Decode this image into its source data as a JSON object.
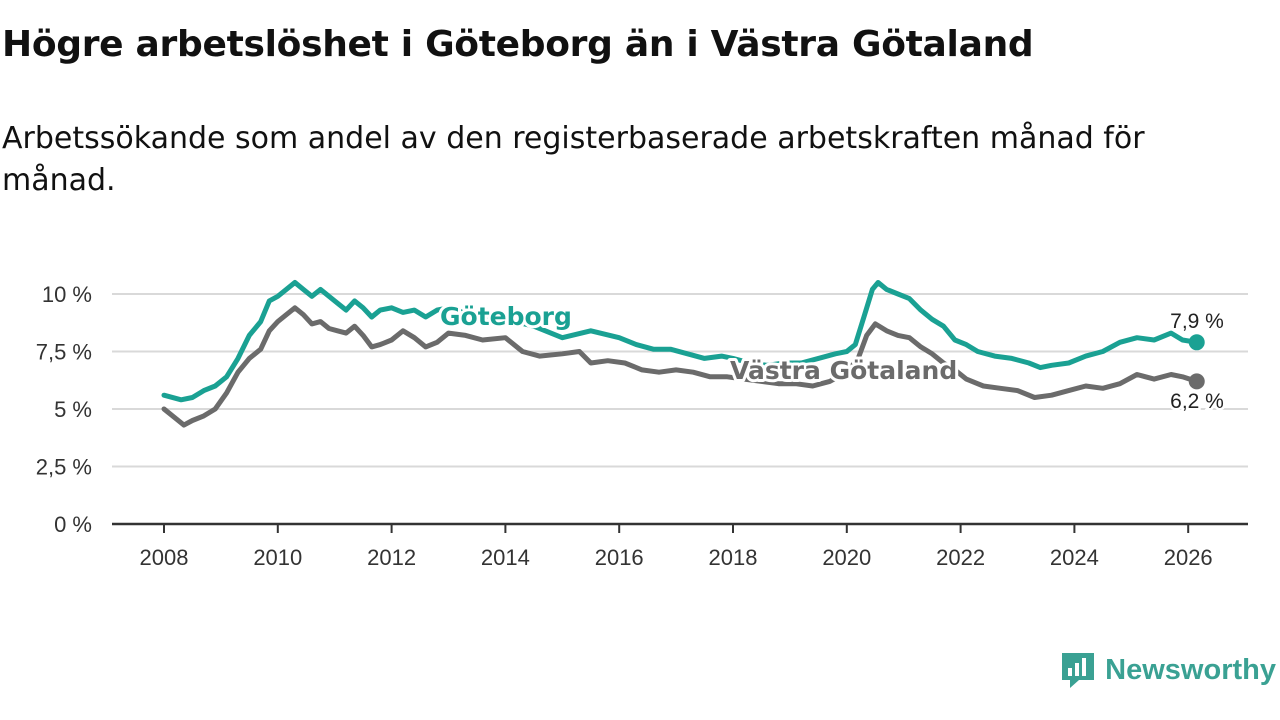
{
  "chart_data": {
    "type": "line",
    "title": "Högre arbetslöshet i Göteborg än i Västra Götaland",
    "subtitle": "Arbetssökande som andel av den registerbaserade arbetskraften månad för månad.",
    "xlabel": "",
    "ylabel": "",
    "xlim": [
      2007,
      2027
    ],
    "ylim": [
      0,
      11
    ],
    "x_ticks": [
      2008,
      2010,
      2012,
      2014,
      2016,
      2018,
      2020,
      2022,
      2024,
      2026
    ],
    "x_tick_labels": [
      "2008",
      "2010",
      "2012",
      "2014",
      "2016",
      "2018",
      "2020",
      "2022",
      "2024",
      "2026"
    ],
    "y_ticks": [
      0,
      2.5,
      5,
      7.5,
      10
    ],
    "y_tick_labels": [
      "0 %",
      "2,5 %",
      "5 %",
      "7,5 %",
      "10 %"
    ],
    "grid": true,
    "series": [
      {
        "name": "Göteborg",
        "color": "#1aa193",
        "end_label": "7,9 %",
        "points": [
          [
            2008.0,
            5.6
          ],
          [
            2008.3,
            5.4
          ],
          [
            2008.5,
            5.5
          ],
          [
            2008.7,
            5.8
          ],
          [
            2008.9,
            6.0
          ],
          [
            2009.1,
            6.4
          ],
          [
            2009.3,
            7.2
          ],
          [
            2009.5,
            8.2
          ],
          [
            2009.7,
            8.8
          ],
          [
            2009.85,
            9.7
          ],
          [
            2010.0,
            9.9
          ],
          [
            2010.15,
            10.2
          ],
          [
            2010.3,
            10.5
          ],
          [
            2010.45,
            10.2
          ],
          [
            2010.6,
            9.9
          ],
          [
            2010.75,
            10.2
          ],
          [
            2010.9,
            9.9
          ],
          [
            2011.05,
            9.6
          ],
          [
            2011.2,
            9.3
          ],
          [
            2011.35,
            9.7
          ],
          [
            2011.5,
            9.4
          ],
          [
            2011.65,
            9.0
          ],
          [
            2011.8,
            9.3
          ],
          [
            2012.0,
            9.4
          ],
          [
            2012.2,
            9.2
          ],
          [
            2012.4,
            9.3
          ],
          [
            2012.6,
            9.0
          ],
          [
            2012.8,
            9.3
          ],
          [
            2013.0,
            9.4
          ],
          [
            2013.5,
            9.0
          ],
          [
            2014.0,
            8.9
          ],
          [
            2014.5,
            8.6
          ],
          [
            2015.0,
            8.1
          ],
          [
            2015.5,
            8.4
          ],
          [
            2016.0,
            8.1
          ],
          [
            2016.3,
            7.8
          ],
          [
            2016.6,
            7.6
          ],
          [
            2016.9,
            7.6
          ],
          [
            2017.2,
            7.4
          ],
          [
            2017.5,
            7.2
          ],
          [
            2017.8,
            7.3
          ],
          [
            2018.0,
            7.2
          ],
          [
            2018.3,
            7.0
          ],
          [
            2018.6,
            6.9
          ],
          [
            2018.9,
            7.0
          ],
          [
            2019.2,
            7.0
          ],
          [
            2019.5,
            7.2
          ],
          [
            2019.8,
            7.4
          ],
          [
            2020.0,
            7.5
          ],
          [
            2020.15,
            7.8
          ],
          [
            2020.3,
            9.0
          ],
          [
            2020.45,
            10.2
          ],
          [
            2020.55,
            10.5
          ],
          [
            2020.7,
            10.2
          ],
          [
            2020.9,
            10.0
          ],
          [
            2021.1,
            9.8
          ],
          [
            2021.3,
            9.3
          ],
          [
            2021.5,
            8.9
          ],
          [
            2021.7,
            8.6
          ],
          [
            2021.9,
            8.0
          ],
          [
            2022.1,
            7.8
          ],
          [
            2022.3,
            7.5
          ],
          [
            2022.6,
            7.3
          ],
          [
            2022.9,
            7.2
          ],
          [
            2023.2,
            7.0
          ],
          [
            2023.4,
            6.8
          ],
          [
            2023.6,
            6.9
          ],
          [
            2023.9,
            7.0
          ],
          [
            2024.2,
            7.3
          ],
          [
            2024.5,
            7.5
          ],
          [
            2024.8,
            7.9
          ],
          [
            2025.1,
            8.1
          ],
          [
            2025.4,
            8.0
          ],
          [
            2025.7,
            8.3
          ],
          [
            2025.9,
            8.0
          ],
          [
            2026.15,
            7.9
          ]
        ]
      },
      {
        "name": "Västra Götaland",
        "color": "#6b6b6b",
        "end_label": "6,2 %",
        "points": [
          [
            2008.0,
            5.0
          ],
          [
            2008.2,
            4.6
          ],
          [
            2008.35,
            4.3
          ],
          [
            2008.5,
            4.5
          ],
          [
            2008.7,
            4.7
          ],
          [
            2008.9,
            5.0
          ],
          [
            2009.1,
            5.7
          ],
          [
            2009.3,
            6.6
          ],
          [
            2009.5,
            7.2
          ],
          [
            2009.7,
            7.6
          ],
          [
            2009.85,
            8.4
          ],
          [
            2010.0,
            8.8
          ],
          [
            2010.15,
            9.1
          ],
          [
            2010.3,
            9.4
          ],
          [
            2010.45,
            9.1
          ],
          [
            2010.6,
            8.7
          ],
          [
            2010.75,
            8.8
          ],
          [
            2010.9,
            8.5
          ],
          [
            2011.05,
            8.4
          ],
          [
            2011.2,
            8.3
          ],
          [
            2011.35,
            8.6
          ],
          [
            2011.5,
            8.2
          ],
          [
            2011.65,
            7.7
          ],
          [
            2011.8,
            7.8
          ],
          [
            2012.0,
            8.0
          ],
          [
            2012.2,
            8.4
          ],
          [
            2012.4,
            8.1
          ],
          [
            2012.6,
            7.7
          ],
          [
            2012.8,
            7.9
          ],
          [
            2013.0,
            8.3
          ],
          [
            2013.3,
            8.2
          ],
          [
            2013.6,
            8.0
          ],
          [
            2014.0,
            8.1
          ],
          [
            2014.3,
            7.5
          ],
          [
            2014.6,
            7.3
          ],
          [
            2015.0,
            7.4
          ],
          [
            2015.3,
            7.5
          ],
          [
            2015.5,
            7.0
          ],
          [
            2015.8,
            7.1
          ],
          [
            2016.1,
            7.0
          ],
          [
            2016.4,
            6.7
          ],
          [
            2016.7,
            6.6
          ],
          [
            2017.0,
            6.7
          ],
          [
            2017.3,
            6.6
          ],
          [
            2017.6,
            6.4
          ],
          [
            2017.9,
            6.4
          ],
          [
            2018.2,
            6.3
          ],
          [
            2018.5,
            6.2
          ],
          [
            2018.8,
            6.1
          ],
          [
            2019.1,
            6.1
          ],
          [
            2019.4,
            6.0
          ],
          [
            2019.7,
            6.2
          ],
          [
            2020.0,
            6.6
          ],
          [
            2020.2,
            7.2
          ],
          [
            2020.35,
            8.2
          ],
          [
            2020.5,
            8.7
          ],
          [
            2020.7,
            8.4
          ],
          [
            2020.9,
            8.2
          ],
          [
            2021.1,
            8.1
          ],
          [
            2021.3,
            7.7
          ],
          [
            2021.5,
            7.4
          ],
          [
            2021.7,
            7.0
          ],
          [
            2021.9,
            6.7
          ],
          [
            2022.1,
            6.3
          ],
          [
            2022.4,
            6.0
          ],
          [
            2022.7,
            5.9
          ],
          [
            2023.0,
            5.8
          ],
          [
            2023.3,
            5.5
          ],
          [
            2023.6,
            5.6
          ],
          [
            2023.9,
            5.8
          ],
          [
            2024.2,
            6.0
          ],
          [
            2024.5,
            5.9
          ],
          [
            2024.8,
            6.1
          ],
          [
            2025.1,
            6.5
          ],
          [
            2025.4,
            6.3
          ],
          [
            2025.7,
            6.5
          ],
          [
            2025.9,
            6.4
          ],
          [
            2026.15,
            6.2
          ]
        ]
      }
    ]
  },
  "brand": {
    "name": "Newsworthy",
    "icon": "newsworthy-logo-icon",
    "color": "#3aa193"
  }
}
